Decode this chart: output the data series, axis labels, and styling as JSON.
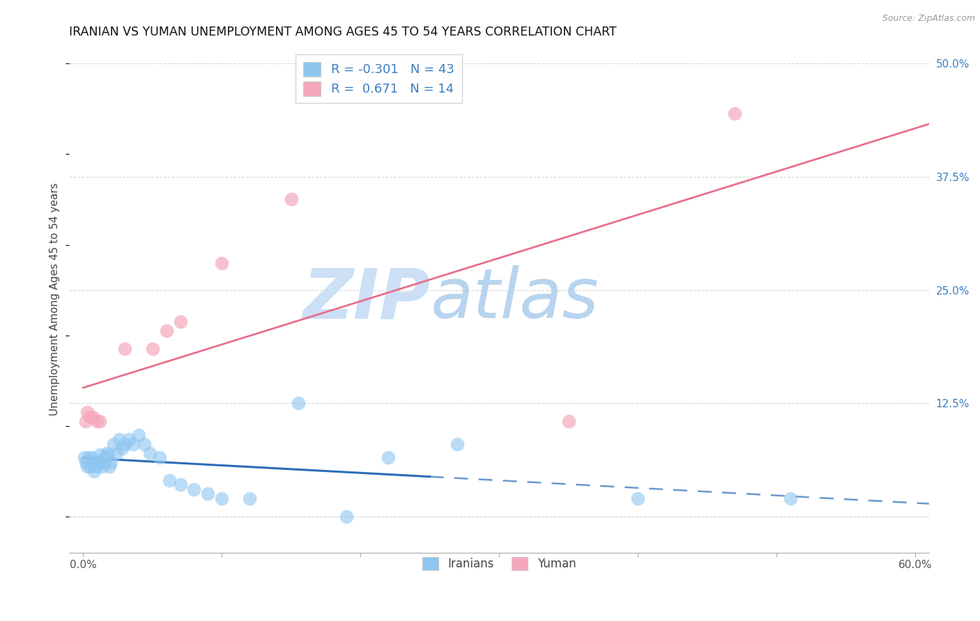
{
  "title": "IRANIAN VS YUMAN UNEMPLOYMENT AMONG AGES 45 TO 54 YEARS CORRELATION CHART",
  "source": "Source: ZipAtlas.com",
  "ylabel": "Unemployment Among Ages 45 to 54 years",
  "xlim": [
    -0.01,
    0.61
  ],
  "ylim": [
    -0.04,
    0.52
  ],
  "xtick_vals": [
    0.0,
    0.1,
    0.2,
    0.3,
    0.4,
    0.5,
    0.6
  ],
  "xtick_labels": [
    "0.0%",
    "",
    "",
    "",
    "",
    "",
    "60.0%"
  ],
  "ytick_vals_right": [
    0.0,
    0.125,
    0.25,
    0.375,
    0.5
  ],
  "ytick_labels_right": [
    "",
    "12.5%",
    "25.0%",
    "37.5%",
    "50.0%"
  ],
  "legend_r_iranian": "-0.301",
  "legend_n_iranian": "43",
  "legend_r_yuman": " 0.671",
  "legend_n_yuman": "14",
  "iranian_color": "#8ec6f0",
  "yuman_color": "#f5a8bc",
  "trendline_iranian_color": "#2b6cb8",
  "trendline_yuman_color": "#e8708a",
  "background_color": "#ffffff",
  "grid_color": "#cccccc",
  "watermark_zip": "ZIP",
  "watermark_atlas": "atlas",
  "watermark_color_zip": "#ccdff5",
  "watermark_color_atlas": "#b8d4ee",
  "iranian_x": [
    0.001,
    0.002,
    0.003,
    0.004,
    0.005,
    0.006,
    0.007,
    0.008,
    0.009,
    0.01,
    0.011,
    0.012,
    0.013,
    0.014,
    0.015,
    0.016,
    0.017,
    0.018,
    0.019,
    0.02,
    0.022,
    0.024,
    0.026,
    0.028,
    0.03,
    0.033,
    0.036,
    0.04,
    0.044,
    0.048,
    0.055,
    0.062,
    0.07,
    0.08,
    0.09,
    0.1,
    0.12,
    0.155,
    0.19,
    0.22,
    0.27,
    0.4,
    0.51
  ],
  "iranian_y": [
    0.065,
    0.06,
    0.055,
    0.065,
    0.055,
    0.065,
    0.055,
    0.05,
    0.06,
    0.055,
    0.06,
    0.068,
    0.062,
    0.055,
    0.06,
    0.065,
    0.07,
    0.068,
    0.055,
    0.06,
    0.08,
    0.07,
    0.085,
    0.075,
    0.08,
    0.085,
    0.08,
    0.09,
    0.08,
    0.07,
    0.065,
    0.04,
    0.035,
    0.03,
    0.025,
    0.02,
    0.02,
    0.125,
    0.0,
    0.065,
    0.08,
    0.02,
    0.02
  ],
  "yuman_x": [
    0.002,
    0.003,
    0.005,
    0.007,
    0.01,
    0.012,
    0.03,
    0.05,
    0.06,
    0.07,
    0.1,
    0.15,
    0.35,
    0.47
  ],
  "yuman_y": [
    0.105,
    0.115,
    0.11,
    0.11,
    0.105,
    0.105,
    0.185,
    0.185,
    0.205,
    0.215,
    0.28,
    0.35,
    0.105,
    0.445
  ],
  "trendline_solid_xmax": 0.25,
  "trendline_dashed_xmin": 0.25
}
